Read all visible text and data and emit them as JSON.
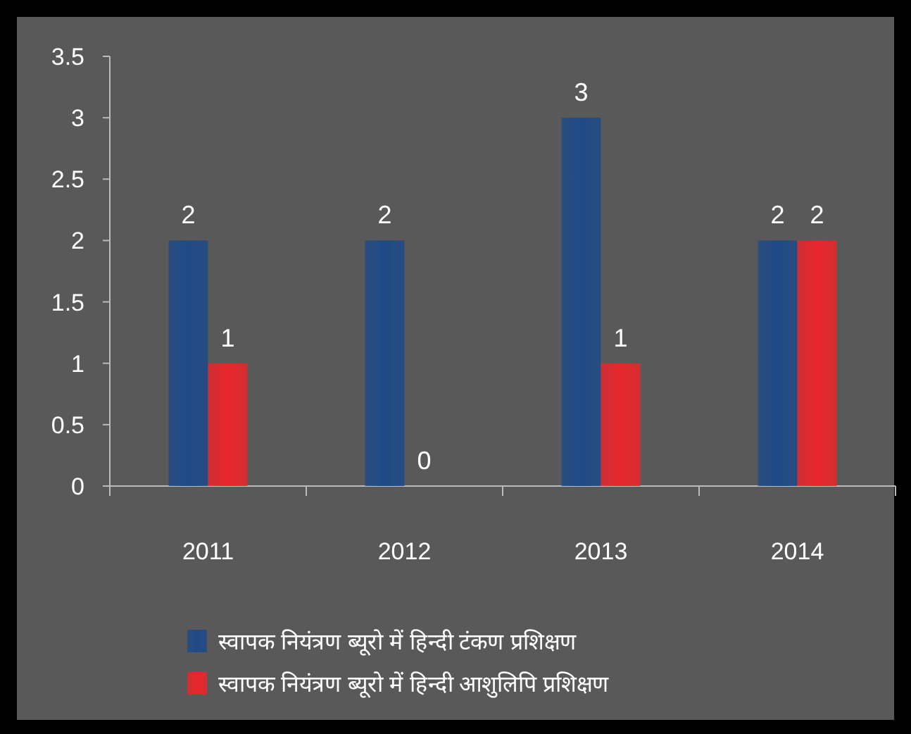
{
  "chart_data": {
    "type": "bar",
    "categories": [
      "2011",
      "2012",
      "2013",
      "2014"
    ],
    "series": [
      {
        "name": "स्वापक नियंत्रण ब्यूरो में हिन्दी टंकण प्रशिक्षण",
        "color": "#1f4a87",
        "values": [
          2,
          2,
          3,
          2
        ]
      },
      {
        "name": "स्वापक नियंत्रण ब्यूरो में हिन्दी आशुलिपि प्रशिक्षण",
        "color": "#e8262b",
        "values": [
          1,
          0,
          1,
          2
        ]
      }
    ],
    "ylim": [
      0,
      3.5
    ],
    "yticks": [
      0,
      0.5,
      1,
      1.5,
      2,
      2.5,
      3,
      3.5
    ],
    "data_labels": true,
    "legend": "bottom"
  }
}
